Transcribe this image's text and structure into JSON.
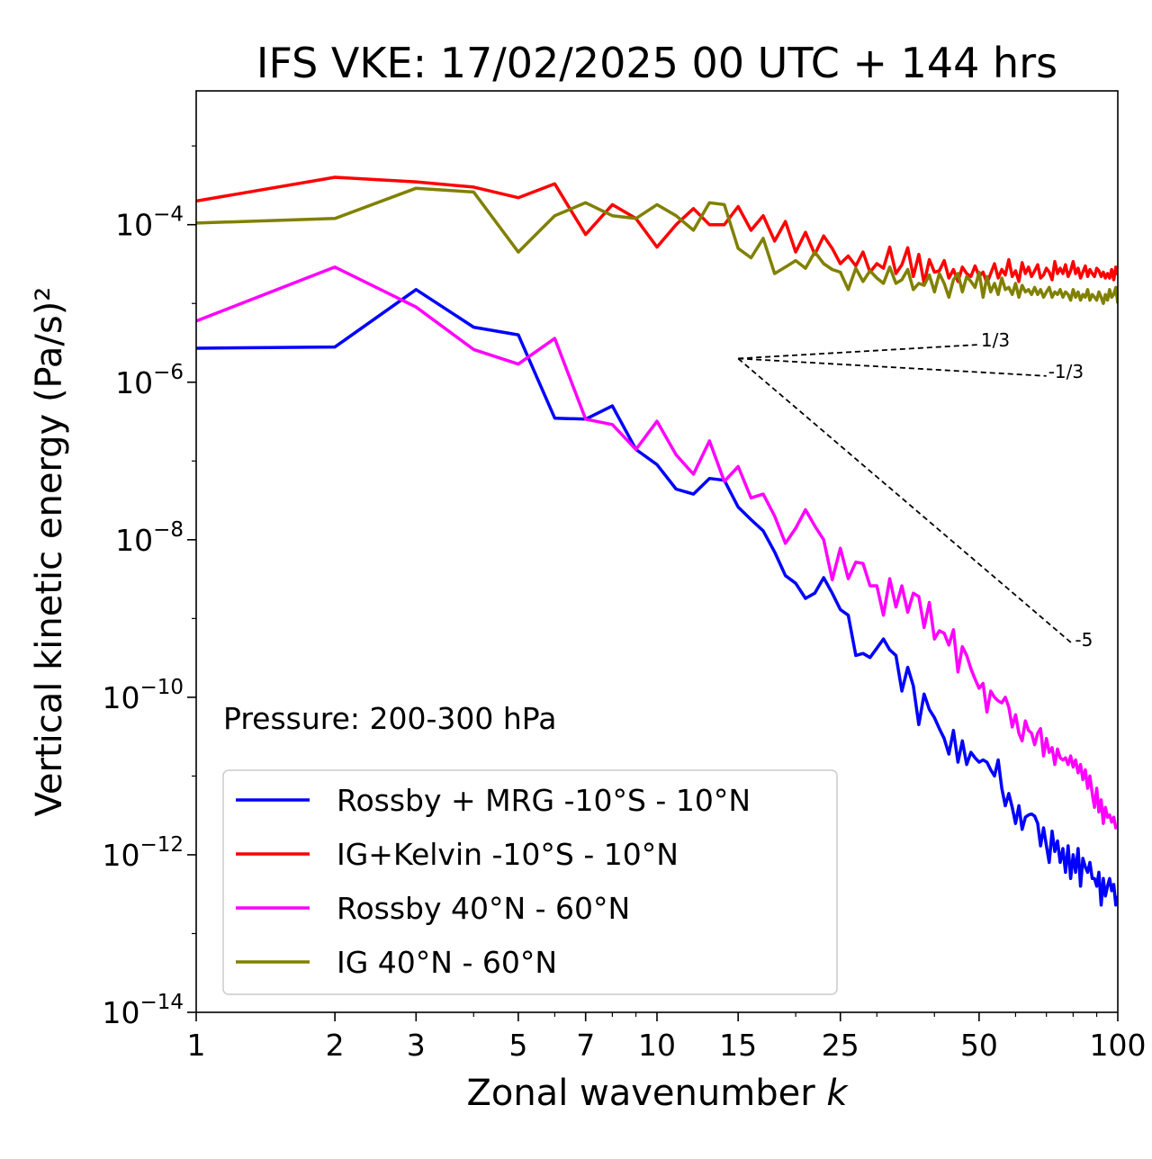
{
  "chart_data": {
    "type": "line",
    "title": "IFS VKE: 17/02/2025 00 UTC + 144 hrs",
    "xlabel": "Zonal wavenumber",
    "xlabel_var": "k",
    "ylabel": "Vertical kinetic energy (Pa/s)²",
    "x_scale": "log",
    "y_scale": "log",
    "xlim": [
      1,
      100
    ],
    "ylim": [
      1e-14,
      0.005
    ],
    "x_ticks": [
      1,
      2,
      3,
      5,
      7,
      10,
      15,
      25,
      50,
      100
    ],
    "x_tick_labels": [
      "1",
      "2",
      "3",
      "5",
      "7",
      "10",
      "15",
      "25",
      "50",
      "100"
    ],
    "y_ticks": [
      {
        "value": 0.0001,
        "base": "10",
        "exp": "−4"
      },
      {
        "value": 1e-06,
        "base": "10",
        "exp": "−6"
      },
      {
        "value": 1e-08,
        "base": "10",
        "exp": "−8"
      },
      {
        "value": 1e-10,
        "base": "10",
        "exp": "−10"
      },
      {
        "value": 1e-12,
        "base": "10",
        "exp": "−12"
      },
      {
        "value": 1e-14,
        "base": "10",
        "exp": "−14"
      }
    ],
    "grid": false,
    "legend_position": "lower-left",
    "annotation": "Pressure: 200-300 hPa",
    "reference_lines": [
      {
        "label": "1/3",
        "slope": 0.3333,
        "x": [
          15,
          50
        ],
        "y": [
          2e-06,
          3e-06
        ]
      },
      {
        "label": "-1/3",
        "slope": -0.3333,
        "x": [
          15,
          70
        ],
        "y": [
          2e-06,
          1.2e-06
        ]
      },
      {
        "label": "-5",
        "slope": -5,
        "x": [
          15,
          80
        ],
        "y": [
          2e-06,
          4.7e-10
        ]
      }
    ],
    "series": [
      {
        "name": "Rossby + MRG -10°S - 10°N",
        "color": "#0000ff",
        "x": [
          1,
          2,
          3,
          4,
          5,
          6,
          7,
          8,
          9,
          10,
          11,
          12,
          13,
          14,
          15,
          16,
          17,
          18,
          19,
          20,
          21,
          22,
          23,
          24,
          25,
          26,
          27,
          28,
          29,
          30,
          31,
          32,
          33,
          34,
          35,
          36,
          37,
          38,
          39,
          40,
          41,
          42,
          43,
          44,
          45,
          46,
          47,
          48,
          49,
          50,
          51,
          52,
          53,
          54,
          55,
          56,
          57,
          58,
          59,
          60,
          61,
          62,
          63,
          64,
          65,
          66,
          67,
          68,
          69,
          70,
          71,
          72,
          73,
          74,
          75,
          76,
          77,
          78,
          79,
          80,
          81,
          82,
          83,
          84,
          85,
          86,
          87,
          88,
          89,
          90,
          91,
          92,
          93,
          94,
          95,
          96,
          97,
          98,
          99,
          100
        ],
        "y": [
          2.7e-06,
          2.8e-06,
          1.5e-05,
          5e-06,
          4e-06,
          3.5e-07,
          3.4e-07,
          5e-07,
          1.4e-07,
          9e-08,
          4.4e-08,
          3.8e-08,
          6e-08,
          5.7e-08,
          2.6e-08,
          1.8e-08,
          1.3e-08,
          7e-09,
          3.5e-09,
          2.8e-09,
          1.8e-09,
          2.1e-09,
          3.3e-09,
          2.1e-09,
          1.3e-09,
          1.1e-09,
          3.4e-10,
          3.6e-10,
          3.2e-10,
          4.2e-10,
          5.5e-10,
          4e-10,
          3.4e-10,
          1.2e-10,
          2.4e-10,
          1.4e-10,
          4.5e-11,
          1.1e-10,
          7e-11,
          5.5e-11,
          4e-11,
          3e-11,
          1.9e-11,
          3.8e-11,
          1.5e-11,
          2.8e-11,
          1.4e-11,
          2e-11,
          1.7e-11,
          1.5e-11,
          1.6e-11,
          1.5e-11,
          1.2e-11,
          1e-11,
          1.6e-11,
          7e-12,
          4.2e-12,
          6e-12,
          4e-12,
          2.5e-12,
          4.2e-12,
          2.1e-12,
          3e-12,
          3.2e-12,
          3.3e-12,
          3.1e-12,
          2.5e-12,
          1.3e-12,
          2.2e-12,
          1.3e-12,
          8e-13,
          2e-12,
          1.1e-12,
          1.5e-12,
          8e-13,
          1.2e-12,
          6e-13,
          1.3e-12,
          5e-13,
          1e-12,
          6e-13,
          1.2e-12,
          4e-13,
          9e-13,
          7e-13,
          6e-13,
          8e-13,
          5e-13,
          5e-13,
          4e-13,
          6e-13,
          2.3e-13,
          5e-13,
          3e-13,
          4e-13,
          5e-13,
          3.5e-13,
          4.2e-13,
          2.3e-13,
          3e-13
        ]
      },
      {
        "name": "IG+Kelvin -10°S - 10°N",
        "color": "#ff0000",
        "x": [
          1,
          2,
          3,
          4,
          5,
          6,
          7,
          8,
          9,
          10,
          11,
          12,
          13,
          14,
          15,
          16,
          17,
          18,
          19,
          20,
          21,
          22,
          23,
          24,
          25,
          26,
          27,
          28,
          29,
          30,
          31,
          32,
          33,
          34,
          35,
          36,
          37,
          38,
          39,
          40,
          41,
          42,
          43,
          44,
          45,
          46,
          47,
          48,
          49,
          50,
          51,
          52,
          53,
          54,
          55,
          56,
          57,
          58,
          59,
          60,
          61,
          62,
          63,
          64,
          65,
          66,
          67,
          68,
          69,
          70,
          71,
          72,
          73,
          74,
          75,
          76,
          77,
          78,
          79,
          80,
          81,
          82,
          83,
          84,
          85,
          86,
          87,
          88,
          89,
          90,
          91,
          92,
          93,
          94,
          95,
          96,
          97,
          98,
          99,
          100
        ],
        "y": [
          0.0002,
          0.0004,
          0.00035,
          0.0003,
          0.00022,
          0.00033,
          7.5e-05,
          0.00018,
          0.00012,
          5.2e-05,
          0.0001,
          0.00016,
          0.0001,
          0.0001,
          0.00017,
          8.5e-05,
          0.00013,
          6.2e-05,
          0.00011,
          4.5e-05,
          8e-05,
          4.2e-05,
          7.2e-05,
          5e-05,
          3.2e-05,
          4e-05,
          3e-05,
          4.5e-05,
          2.5e-05,
          3.2e-05,
          2.8e-05,
          5.2e-05,
          2.4e-05,
          3.1e-05,
          5.1e-05,
          2.2e-05,
          4.2e-05,
          1.8e-05,
          3.6e-05,
          2.5e-05,
          2.6e-05,
          3.5e-05,
          2.1e-05,
          2.7e-05,
          1.9e-05,
          2.9e-05,
          2.4e-05,
          2.2e-05,
          3e-05,
          2.2e-05,
          2.5e-05,
          1.8e-05,
          2.4e-05,
          3.2e-05,
          2.1e-05,
          2.7e-05,
          2.3e-05,
          3.6e-05,
          2.2e-05,
          2.6e-05,
          1.9e-05,
          3.3e-05,
          2.4e-05,
          2.9e-05,
          2.2e-05,
          2.6e-05,
          3.1e-05,
          2.1e-05,
          2.3e-05,
          2.8e-05,
          2.5e-05,
          2e-05,
          3.4e-05,
          2.4e-05,
          2.8e-05,
          2.4e-05,
          3.1e-05,
          2.2e-05,
          2.6e-05,
          3.4e-05,
          2.4e-05,
          2.8e-05,
          2.1e-05,
          2.5e-05,
          3e-05,
          2.2e-05,
          2.7e-05,
          2.4e-05,
          2.2e-05,
          2.8e-05,
          2.6e-05,
          2.2e-05,
          2.5e-05,
          2.1e-05,
          2.4e-05,
          2.1e-05,
          2.7e-05,
          2e-05,
          2.9e-05,
          2.3e-05
        ]
      },
      {
        "name": "Rossby 40°N - 60°N",
        "color": "#ff00ff",
        "x": [
          1,
          2,
          3,
          4,
          5,
          6,
          7,
          8,
          9,
          10,
          11,
          12,
          13,
          14,
          15,
          16,
          17,
          18,
          19,
          20,
          21,
          22,
          23,
          24,
          25,
          26,
          27,
          28,
          29,
          30,
          31,
          32,
          33,
          34,
          35,
          36,
          37,
          38,
          39,
          40,
          41,
          42,
          43,
          44,
          45,
          46,
          47,
          48,
          49,
          50,
          51,
          52,
          53,
          54,
          55,
          56,
          57,
          58,
          59,
          60,
          61,
          62,
          63,
          64,
          65,
          66,
          67,
          68,
          69,
          70,
          71,
          72,
          73,
          74,
          75,
          76,
          77,
          78,
          79,
          80,
          81,
          82,
          83,
          84,
          85,
          86,
          87,
          88,
          89,
          90,
          91,
          92,
          93,
          94,
          95,
          96,
          97,
          98,
          99,
          100
        ],
        "y": [
          6e-06,
          2.9e-05,
          9e-06,
          2.6e-06,
          1.7e-06,
          3.6e-06,
          3.4e-07,
          2.9e-07,
          1.4e-07,
          3.2e-07,
          1.2e-07,
          6.8e-08,
          1.8e-07,
          5.5e-08,
          8.5e-08,
          3.4e-08,
          3.8e-08,
          2e-08,
          9e-09,
          1.4e-08,
          2.4e-08,
          1.5e-08,
          1e-08,
          3.1e-09,
          7.8e-09,
          3.2e-09,
          5.2e-09,
          5e-09,
          2.6e-09,
          2.6e-09,
          1.1e-09,
          3.2e-09,
          1.4e-09,
          2.6e-09,
          1.2e-09,
          2.1e-09,
          1.9e-09,
          7.7e-10,
          1.6e-09,
          5.5e-10,
          7e-10,
          6.5e-10,
          4.6e-10,
          7.2e-10,
          2.1e-10,
          4.4e-10,
          3.4e-10,
          2.3e-10,
          1.7e-10,
          1.3e-10,
          1.5e-10,
          6.5e-11,
          1.2e-10,
          1e-10,
          9e-11,
          8.5e-11,
          1e-10,
          7.5e-11,
          4.2e-11,
          6e-11,
          3.5e-11,
          2.8e-11,
          5e-11,
          3.8e-11,
          3.5e-11,
          2.5e-11,
          3.5e-11,
          4e-11,
          1.8e-11,
          3e-11,
          2e-11,
          2.3e-11,
          1.4e-11,
          2.2e-11,
          1.7e-11,
          1.6e-11,
          1.7e-11,
          1.4e-11,
          1.8e-11,
          1.3e-11,
          1.6e-11,
          1.1e-11,
          1.4e-11,
          9e-12,
          1.2e-11,
          7e-12,
          1e-11,
          6e-12,
          4e-12,
          7e-12,
          3.5e-12,
          5e-12,
          2.5e-12,
          4e-12,
          3e-12,
          3.2e-12,
          2.6e-12,
          3e-12,
          2.2e-12,
          2.3e-12
        ]
      },
      {
        "name": "IG 40°N - 60°N",
        "color": "#808000",
        "x": [
          1,
          2,
          3,
          4,
          5,
          6,
          7,
          8,
          9,
          10,
          11,
          12,
          13,
          14,
          15,
          16,
          17,
          18,
          19,
          20,
          21,
          22,
          23,
          24,
          25,
          26,
          27,
          28,
          29,
          30,
          31,
          32,
          33,
          34,
          35,
          36,
          37,
          38,
          39,
          40,
          41,
          42,
          43,
          44,
          45,
          46,
          47,
          48,
          49,
          50,
          51,
          52,
          53,
          54,
          55,
          56,
          57,
          58,
          59,
          60,
          61,
          62,
          63,
          64,
          65,
          66,
          67,
          68,
          69,
          70,
          71,
          72,
          73,
          74,
          75,
          76,
          77,
          78,
          79,
          80,
          81,
          82,
          83,
          84,
          85,
          86,
          87,
          88,
          89,
          90,
          91,
          92,
          93,
          94,
          95,
          96,
          97,
          98,
          99,
          100
        ],
        "y": [
          0.000105,
          0.00012,
          0.00029,
          0.00026,
          4.5e-05,
          0.00013,
          0.00019,
          0.00013,
          0.00012,
          0.00018,
          0.00013,
          8.5e-05,
          0.00019,
          0.00018,
          5e-05,
          3.8e-05,
          6.7e-05,
          2.4e-05,
          2.9e-05,
          3.5e-05,
          2.8e-05,
          4.5e-05,
          3.2e-05,
          2.7e-05,
          2.5e-05,
          1.5e-05,
          2.8e-05,
          1.9e-05,
          2.6e-05,
          2.1e-05,
          1.8e-05,
          2.9e-05,
          1.8e-05,
          2e-05,
          2.7e-05,
          1.5e-05,
          1.8e-05,
          1.7e-05,
          2.3e-05,
          1.4e-05,
          2.4e-05,
          1.8e-05,
          1.2e-05,
          2e-05,
          2.4e-05,
          1.4e-05,
          2.2e-05,
          1.9e-05,
          1.6e-05,
          2.5e-05,
          1.2e-05,
          2.2e-05,
          1.4e-05,
          1.8e-05,
          1.3e-05,
          2.1e-05,
          1.5e-05,
          1.6e-05,
          1.3e-05,
          1.8e-05,
          1.2e-05,
          1.7e-05,
          1.4e-05,
          1.5e-05,
          1.3e-05,
          1.6e-05,
          1.3e-05,
          1.5e-05,
          1.2e-05,
          1.4e-05,
          1.6e-05,
          1.2e-05,
          1.4e-05,
          1.3e-05,
          1.5e-05,
          1.2e-05,
          1.4e-05,
          1.3e-05,
          1.1e-05,
          1.5e-05,
          1.2e-05,
          1.4e-05,
          1.1e-05,
          1.3e-05,
          1.2e-05,
          1.5e-05,
          1.1e-05,
          1.3e-05,
          1.2e-05,
          1.1e-05,
          1.4e-05,
          1.2e-05,
          1e-05,
          1.3e-05,
          1.1e-05,
          1.5e-05,
          1.2e-05,
          1.3e-05,
          1.6e-05,
          1e-05
        ]
      }
    ]
  }
}
